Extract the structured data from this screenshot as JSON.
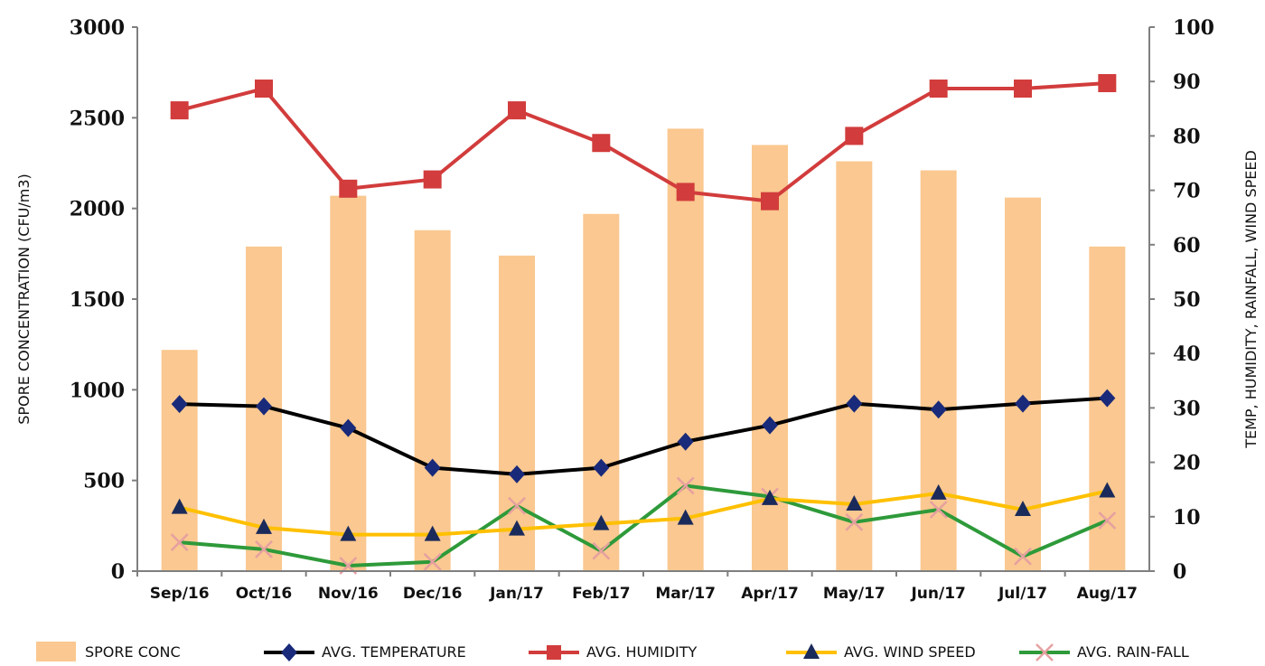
{
  "chart_data": {
    "type": "bar",
    "categories": [
      "Sep/16",
      "Oct/16",
      "Nov/16",
      "Dec/16",
      "Jan/17",
      "Feb/17",
      "Mar/17",
      "Apr/17",
      "May/17",
      "Jun/17",
      "Jul/17",
      "Aug/17"
    ],
    "ylabel": "SPORE CONCENTRATION  (CFU/m3)",
    "y2label": "TEMP, HUMIDITY, RAINFALL, WIND SPEED",
    "ylim": [
      0,
      3000
    ],
    "y2lim": [
      0,
      100
    ],
    "yticks": [
      "0",
      "500",
      "1000",
      "1500",
      "2000",
      "2500",
      "3000"
    ],
    "y2ticks": [
      "0",
      "10",
      "20",
      "30",
      "40",
      "50",
      "60",
      "70",
      "80",
      "90",
      "100"
    ],
    "legend_position": "bottom",
    "grid": false,
    "bar_series": {
      "name": "SPORE CONC",
      "axis": "left",
      "color": "#fac890",
      "values": [
        1220,
        1790,
        2070,
        1880,
        1740,
        1970,
        2440,
        2350,
        2260,
        2210,
        2060,
        1790
      ]
    },
    "line_series": [
      {
        "name": "AVG. TEMPERATURE",
        "axis": "right",
        "color": "#000000",
        "marker": "diamond",
        "marker_color": "#1a2a7a",
        "values": [
          30.7,
          30.3,
          26.3,
          19.0,
          17.8,
          19.0,
          23.8,
          26.8,
          30.8,
          29.7,
          30.8,
          31.8
        ]
      },
      {
        "name": "AVG. HUMIDITY",
        "axis": "right",
        "color": "#d23c3c",
        "marker": "square",
        "marker_color": "#d23c3c",
        "values": [
          84.7,
          88.7,
          70.3,
          72.0,
          84.7,
          78.7,
          69.7,
          68.0,
          80.0,
          88.7,
          88.7,
          89.7
        ]
      },
      {
        "name": "AVG. WIND SPEED",
        "axis": "right",
        "color": "#ffc000",
        "marker": "triangle",
        "marker_color": "#1a2a5a",
        "values": [
          11.7,
          8.0,
          6.7,
          6.7,
          7.7,
          8.7,
          9.7,
          13.3,
          12.3,
          14.3,
          11.3,
          14.7
        ]
      },
      {
        "name": "AVG. RAIN-FALL",
        "axis": "right",
        "color": "#2e9a3a",
        "marker": "x",
        "marker_color": "#e6a0a0",
        "values": [
          5.3,
          4.0,
          1.0,
          1.7,
          12.0,
          3.7,
          15.7,
          13.7,
          9.0,
          11.3,
          2.7,
          9.3
        ]
      }
    ]
  }
}
